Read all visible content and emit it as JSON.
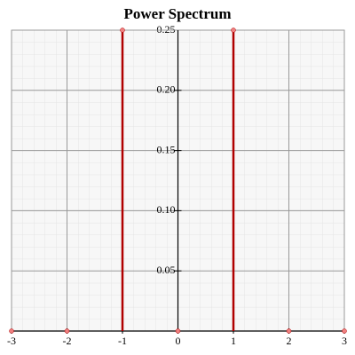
{
  "chart_data": {
    "type": "stem",
    "title": "Power Spectrum",
    "x": [
      -3,
      -2,
      -1,
      0,
      1,
      2,
      3
    ],
    "series": [
      {
        "values": [
          0,
          0,
          0.25,
          0,
          0.25,
          0,
          0
        ],
        "color": "#b00000"
      }
    ],
    "xlim": [
      -3,
      3
    ],
    "xticks": [
      -3,
      -2,
      -1,
      0,
      1,
      2,
      3
    ],
    "ylim": [
      0,
      0.25
    ],
    "yticks": [
      {
        "value": 0.05,
        "label": "0.05"
      },
      {
        "value": 0.1,
        "label": "0.10"
      },
      {
        "value": 0.15,
        "label": "0.15"
      },
      {
        "value": 0.2,
        "label": "0.20"
      },
      {
        "value": 0.25,
        "label": "0.25"
      }
    ],
    "grid": true
  }
}
